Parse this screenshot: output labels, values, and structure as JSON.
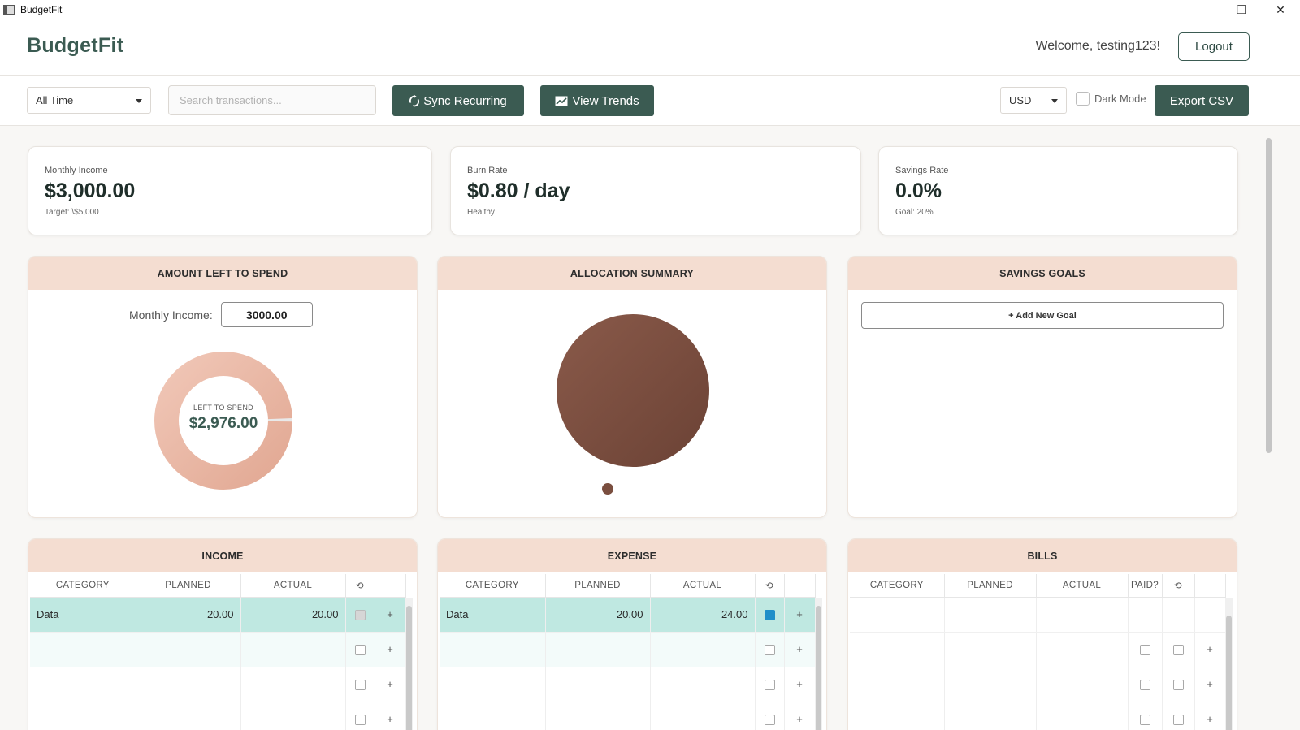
{
  "window": {
    "title": "BudgetFit",
    "minimize": "—",
    "restore": "❐",
    "close": "✕"
  },
  "header": {
    "brand": "BudgetFit",
    "welcome": "Welcome, testing123!",
    "logout_label": "Logout"
  },
  "toolbar": {
    "period": "All Time",
    "search_placeholder": "Search transactions...",
    "sync_label": "Sync Recurring",
    "trends_label": "View Trends",
    "currency": "USD",
    "dark_mode_label": "Dark Mode",
    "export_label": "Export CSV"
  },
  "stats": {
    "income": {
      "label": "Monthly Income",
      "value": "$3,000.00",
      "sub": "Target: \\$5,000"
    },
    "burn": {
      "label": "Burn Rate",
      "value": "$0.80 / day",
      "sub": "Healthy"
    },
    "savings": {
      "label": "Savings Rate",
      "value": "0.0%",
      "sub": "Goal: 20%"
    }
  },
  "left_to_spend": {
    "title": "AMOUNT LEFT TO SPEND",
    "monthly_income_label": "Monthly Income:",
    "monthly_income_value": "3000.00",
    "center_label": "LEFT TO SPEND",
    "center_value": "$2,976.00",
    "spent_fraction": 0.008
  },
  "allocation": {
    "title": "ALLOCATION SUMMARY",
    "slice_color": "#7a4e3f"
  },
  "savings_goals": {
    "title": "SAVINGS GOALS",
    "add_label": "+ Add New Goal"
  },
  "income_table": {
    "title": "INCOME",
    "headers": [
      "CATEGORY",
      "PLANNED",
      "ACTUAL"
    ],
    "rows": [
      {
        "category": "Data",
        "planned": "20.00",
        "actual": "20.00"
      }
    ]
  },
  "expense_table": {
    "title": "EXPENSE",
    "headers": [
      "CATEGORY",
      "PLANNED",
      "ACTUAL"
    ],
    "rows": [
      {
        "category": "Data",
        "planned": "20.00",
        "actual": "24.00"
      }
    ]
  },
  "bills_table": {
    "title": "BILLS",
    "headers": [
      "CATEGORY",
      "PLANNED",
      "ACTUAL",
      "PAID?"
    ]
  },
  "symbols": {
    "recur": "⟲",
    "plus": "+",
    "up": "˄"
  },
  "colors": {
    "accent": "#3b5b52",
    "panel_header": "#f4ddd1",
    "row_highlight": "#bfe8e1",
    "donut": "#e8b5a3"
  }
}
